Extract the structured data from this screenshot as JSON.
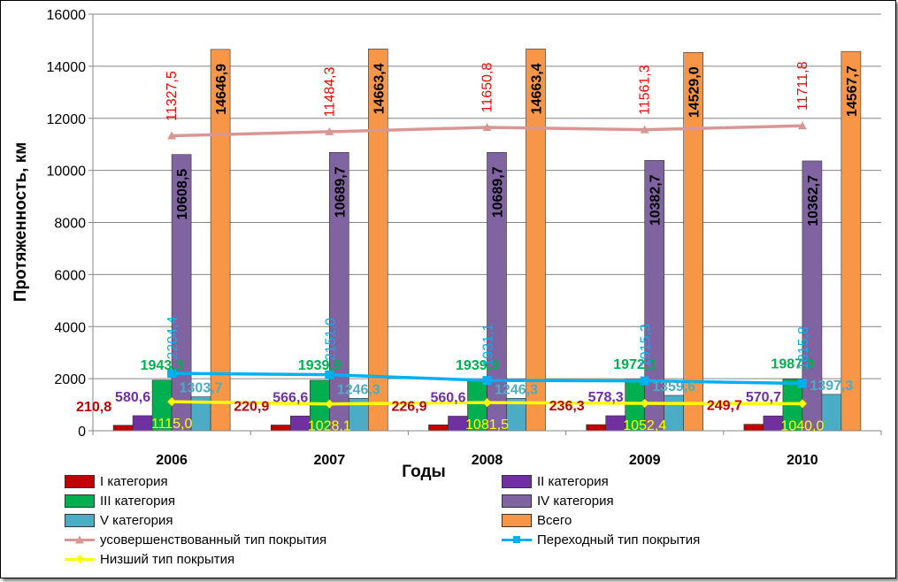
{
  "chart_data": {
    "type": "bar",
    "categories": [
      "2006",
      "2007",
      "2008",
      "2009",
      "2010"
    ],
    "xlabel": "Годы",
    "ylabel": "Протяженность, км",
    "ylim": [
      0,
      16000
    ],
    "yticks": [
      "0",
      "2000",
      "4000",
      "6000",
      "8000",
      "10000",
      "12000",
      "14000",
      "16000"
    ],
    "grid": true,
    "legend_position": "bottom",
    "bar_series": [
      {
        "name": "I категория",
        "color": "#c00000",
        "label_color": "#c00000",
        "values": [
          210.8,
          220.9,
          226.9,
          236.3,
          249.7
        ],
        "labels": [
          "210,8",
          "220,9",
          "226,9",
          "236,3",
          "249,7"
        ]
      },
      {
        "name": "II категория",
        "color": "#7030a0",
        "label_color": "#7030a0",
        "values": [
          580.6,
          566.6,
          560.6,
          578.3,
          570.7
        ],
        "labels": [
          "580,6",
          "566,6",
          "560,6",
          "578,3",
          "570,7"
        ]
      },
      {
        "name": "III категория",
        "color": "#00b050",
        "label_color": "#00b050",
        "values": [
          1943.3,
          1939.9,
          1939.9,
          1972.1,
          1987.3
        ],
        "labels": [
          "1943,3",
          "1939,9",
          "1939,9",
          "1972,1",
          "1987,3"
        ]
      },
      {
        "name": "IV категория",
        "color": "#8064a2",
        "label_color": "#000000",
        "values": [
          10608.5,
          10689.7,
          10689.7,
          10382.7,
          10362.7
        ],
        "labels": [
          "10608,5",
          "10689,7",
          "10689,7",
          "10382,7",
          "10362,7"
        ]
      },
      {
        "name": "V категория",
        "color": "#4bacc6",
        "label_color": "#4bacc6",
        "values": [
          1303.7,
          1246.3,
          1246.3,
          1359.6,
          1397.3
        ],
        "labels": [
          "1303,7",
          "1246,3",
          "1246,3",
          "1359,6",
          "1397,3"
        ]
      },
      {
        "name": "Всего",
        "color": "#f79646",
        "label_color": "#000000",
        "values": [
          14646.9,
          14663.4,
          14663.4,
          14529.0,
          14567.7
        ],
        "labels": [
          "14646,9",
          "14663,4",
          "14663,4",
          "14529,0",
          "14567,7"
        ]
      }
    ],
    "line_series": [
      {
        "name": "усовершенствованный тип покрытия",
        "color": "#d99694",
        "marker": "triangle",
        "values": [
          11327.5,
          11484.3,
          11650.8,
          11561.3,
          11711.8
        ],
        "labels": [
          "11327,5",
          "11484,3",
          "11650,8",
          "11561,3",
          "11711,8"
        ],
        "label_color": "#ff0000"
      },
      {
        "name": "Переходный тип покрытия",
        "color": "#00b0f0",
        "marker": "square",
        "values": [
          2204.4,
          2151.0,
          1931.1,
          1915.3,
          1815.8
        ],
        "labels": [
          "2204,4",
          "2151,0",
          "1931,1",
          "1915,3",
          "1815,8"
        ],
        "label_color": "#00b0f0"
      },
      {
        "name": "Низший тип покрытия",
        "color": "#ffff00",
        "marker": "diamond",
        "values": [
          1115.0,
          1028.1,
          1081.5,
          1052.4,
          1040.0
        ],
        "labels": [
          "1115,0",
          "1028,1",
          "1081,5",
          "1052,4",
          "1040,0"
        ],
        "label_color": "#ffff00"
      }
    ]
  },
  "legend": {
    "items": [
      {
        "label": "I категория",
        "kind": "box",
        "color": "#c00000"
      },
      {
        "label": "II категория",
        "kind": "box",
        "color": "#7030a0"
      },
      {
        "label": "III категория",
        "kind": "box",
        "color": "#00b050"
      },
      {
        "label": "IV категория",
        "kind": "box",
        "color": "#8064a2"
      },
      {
        "label": "V категория",
        "kind": "box",
        "color": "#4bacc6"
      },
      {
        "label": "Всего",
        "kind": "box",
        "color": "#f79646"
      },
      {
        "label": "усовершенствованный тип покрытия",
        "kind": "line",
        "color": "#d99694",
        "marker": "triangle"
      },
      {
        "label": "Переходный тип покрытия",
        "kind": "line",
        "color": "#00b0f0",
        "marker": "square"
      },
      {
        "label": "Низший тип покрытия",
        "kind": "line",
        "color": "#ffff00",
        "marker": "diamond"
      }
    ]
  }
}
